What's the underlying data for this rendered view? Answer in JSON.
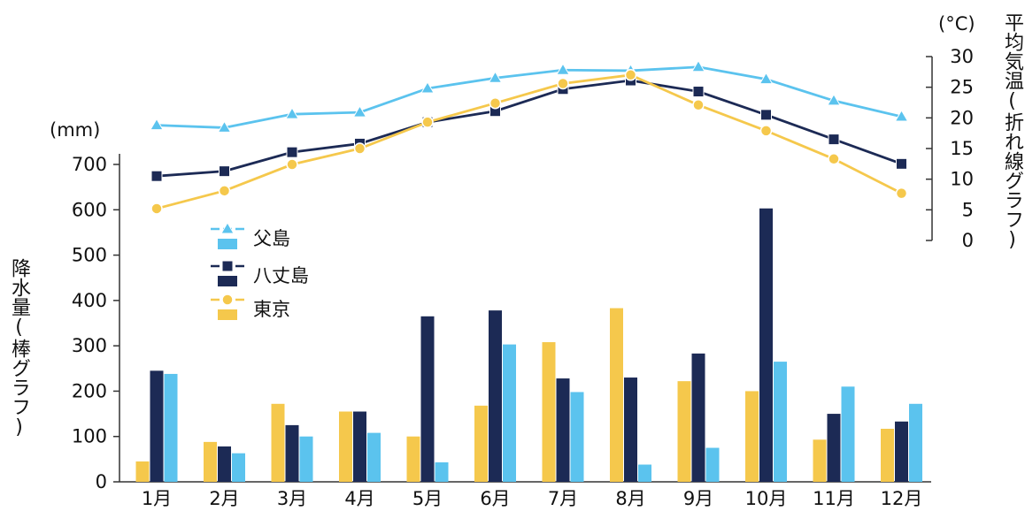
{
  "chart_data": {
    "type": "bar+line",
    "categories": [
      "1月",
      "2月",
      "3月",
      "4月",
      "5月",
      "6月",
      "7月",
      "8月",
      "9月",
      "10月",
      "11月",
      "12月"
    ],
    "precipitation": {
      "unit_label": "(mm)",
      "axis_label": "降水量(棒グラフ)",
      "ylim": [
        0,
        700
      ],
      "ticks": [
        0,
        100,
        200,
        300,
        400,
        500,
        600,
        700
      ],
      "series": [
        {
          "name": "東京",
          "color": "#f5c84c",
          "values": [
            45,
            88,
            172,
            155,
            100,
            168,
            308,
            383,
            222,
            200,
            93,
            117
          ]
        },
        {
          "name": "八丈島",
          "color": "#1c2a55",
          "values": [
            245,
            78,
            125,
            155,
            365,
            378,
            228,
            230,
            283,
            603,
            150,
            133
          ]
        },
        {
          "name": "父島",
          "color": "#5bc3ee",
          "values": [
            238,
            63,
            100,
            108,
            43,
            303,
            198,
            38,
            75,
            265,
            210,
            172
          ]
        }
      ]
    },
    "temperature": {
      "unit_label": "(°C)",
      "axis_label": "平均気温(折れ線グラフ)",
      "ylim": [
        0,
        30
      ],
      "ticks": [
        0,
        5,
        10,
        15,
        20,
        25,
        30
      ],
      "series": [
        {
          "name": "父島",
          "color": "#5bc3ee",
          "marker": "triangle",
          "values": [
            18.8,
            18.4,
            20.6,
            20.9,
            24.8,
            26.5,
            27.8,
            27.7,
            28.3,
            26.3,
            22.8,
            20.2
          ]
        },
        {
          "name": "八丈島",
          "color": "#1c2a55",
          "marker": "square",
          "values": [
            10.5,
            11.3,
            14.4,
            15.8,
            19.3,
            21.1,
            24.7,
            26.1,
            24.3,
            20.5,
            16.5,
            12.5
          ]
        },
        {
          "name": "東京",
          "color": "#f5c84c",
          "marker": "circle",
          "values": [
            5.2,
            8.1,
            12.4,
            15.0,
            19.3,
            22.4,
            25.6,
            27.0,
            22.1,
            17.9,
            13.3,
            7.7
          ]
        }
      ]
    },
    "legend": [
      "父島",
      "八丈島",
      "東京"
    ]
  }
}
